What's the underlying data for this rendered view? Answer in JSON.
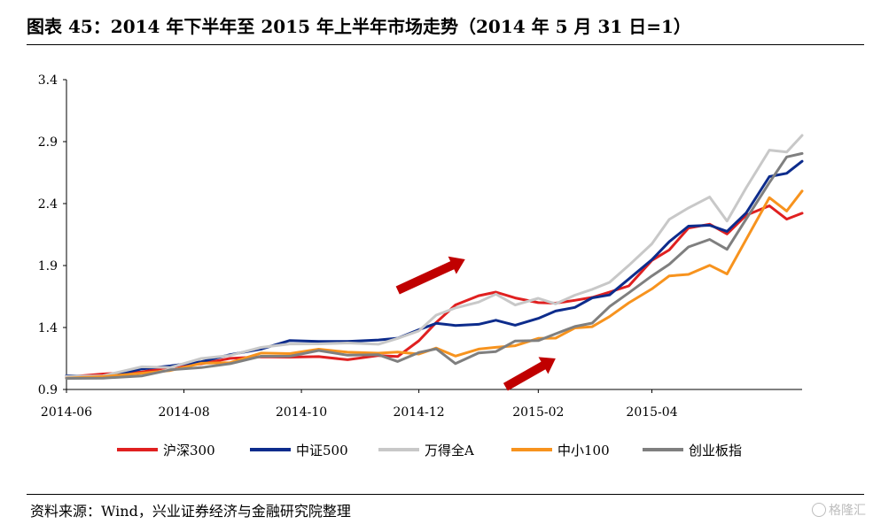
{
  "title": "图表 45：2014 年下半年至 2015 年上半年市场走势（2014 年 5 月 31 日=1）",
  "source": "资料来源：Wind，兴业证券经济与金融研究院整理",
  "watermark": "格隆汇",
  "chart_data": {
    "type": "line",
    "title": "图表 45：2014 年下半年至 2015 年上半年市场走势（2014 年 5 月 31 日=1）",
    "xlabel": "",
    "ylabel": "",
    "ylim": [
      0.9,
      3.4
    ],
    "yticks": [
      "0.9",
      "1.4",
      "1.9",
      "2.4",
      "2.9",
      "3.4"
    ],
    "xticks": [
      "2014-06",
      "2014-08",
      "2014-10",
      "2014-12",
      "2015-02",
      "2015-04"
    ],
    "x": [
      "2014-06-01",
      "2014-06-20",
      "2014-07-10",
      "2014-07-25",
      "2014-08-10",
      "2014-08-25",
      "2014-09-10",
      "2014-09-25",
      "2014-10-10",
      "2014-10-25",
      "2014-11-10",
      "2014-11-20",
      "2014-12-01",
      "2014-12-10",
      "2014-12-20",
      "2015-01-01",
      "2015-01-10",
      "2015-01-20",
      "2015-02-01",
      "2015-02-10",
      "2015-02-20",
      "2015-03-01",
      "2015-03-10",
      "2015-03-20",
      "2015-04-01",
      "2015-04-10",
      "2015-04-20",
      "2015-05-01",
      "2015-05-10",
      "2015-05-20",
      "2015-06-01",
      "2015-06-10",
      "2015-06-18"
    ],
    "grid": false,
    "legend_position": "bottom",
    "series": [
      {
        "name": "沪深300",
        "color": "#e02020",
        "values": [
          1.0,
          1.02,
          1.05,
          1.07,
          1.12,
          1.14,
          1.17,
          1.16,
          1.16,
          1.15,
          1.16,
          1.18,
          1.28,
          1.45,
          1.58,
          1.65,
          1.7,
          1.62,
          1.62,
          1.58,
          1.63,
          1.64,
          1.68,
          1.75,
          1.92,
          2.05,
          2.18,
          2.25,
          2.15,
          2.3,
          2.4,
          2.25,
          2.35
        ]
      },
      {
        "name": "中证500",
        "color": "#0d2c8c",
        "values": [
          1.0,
          1.01,
          1.06,
          1.09,
          1.13,
          1.17,
          1.24,
          1.28,
          1.3,
          1.28,
          1.3,
          1.32,
          1.37,
          1.45,
          1.4,
          1.44,
          1.45,
          1.42,
          1.48,
          1.52,
          1.58,
          1.62,
          1.68,
          1.78,
          1.95,
          2.1,
          2.2,
          2.25,
          2.15,
          2.35,
          2.6,
          2.65,
          2.75
        ]
      },
      {
        "name": "万得全A",
        "color": "#c8c8c8",
        "values": [
          1.0,
          1.02,
          1.07,
          1.09,
          1.14,
          1.18,
          1.24,
          1.26,
          1.28,
          1.26,
          1.28,
          1.3,
          1.38,
          1.5,
          1.55,
          1.62,
          1.65,
          1.6,
          1.62,
          1.6,
          1.66,
          1.7,
          1.78,
          1.88,
          2.1,
          2.25,
          2.38,
          2.45,
          2.25,
          2.55,
          2.8,
          2.85,
          2.92
        ]
      },
      {
        "name": "中小100",
        "color": "#f7931e",
        "values": [
          1.0,
          1.0,
          1.03,
          1.06,
          1.1,
          1.13,
          1.18,
          1.2,
          1.22,
          1.2,
          1.2,
          1.19,
          1.2,
          1.22,
          1.18,
          1.22,
          1.24,
          1.26,
          1.3,
          1.33,
          1.38,
          1.42,
          1.48,
          1.6,
          1.72,
          1.8,
          1.85,
          1.88,
          1.85,
          2.1,
          2.45,
          2.35,
          2.48
        ]
      },
      {
        "name": "创业板指",
        "color": "#7f7f7f",
        "values": [
          1.0,
          0.98,
          1.02,
          1.05,
          1.08,
          1.11,
          1.16,
          1.18,
          1.2,
          1.19,
          1.17,
          1.13,
          1.2,
          1.22,
          1.12,
          1.18,
          1.22,
          1.28,
          1.3,
          1.35,
          1.4,
          1.45,
          1.55,
          1.7,
          1.8,
          1.92,
          2.05,
          2.1,
          2.05,
          2.25,
          2.6,
          2.75,
          2.82
        ]
      }
    ],
    "annotations": [
      {
        "type": "arrow",
        "color": "#c00000",
        "from": [
          "2014-11-20",
          1.7
        ],
        "to": [
          "2014-12-25",
          1.95
        ]
      },
      {
        "type": "arrow",
        "color": "#c00000",
        "from": [
          "2015-01-15",
          0.92
        ],
        "to": [
          "2015-02-10",
          1.15
        ]
      }
    ]
  }
}
